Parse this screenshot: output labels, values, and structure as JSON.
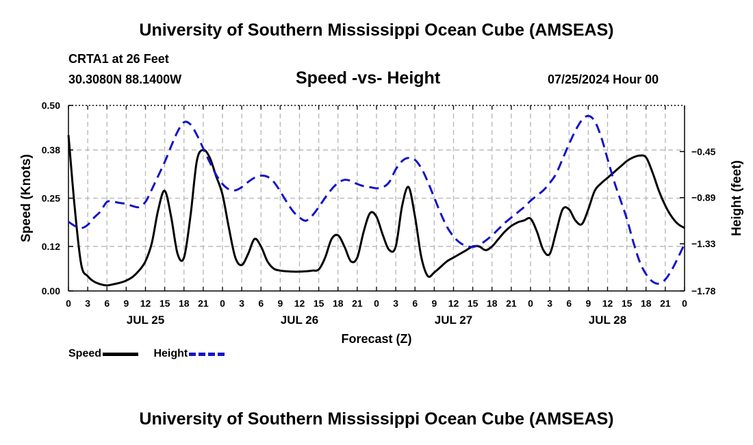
{
  "header": {
    "title": "University of Southern Mississippi Ocean Cube (AMSEAS)",
    "station": "CRTA1 at 26 Feet",
    "coords": "30.3080N  88.1400W",
    "subtitle": "Speed -vs- Height",
    "datetime": "07/25/2024 Hour 00"
  },
  "footer": {
    "title": "University of Southern Mississippi Ocean Cube (AMSEAS)"
  },
  "legend": {
    "speed_label": "Speed",
    "height_label": "Height"
  },
  "chart_data": {
    "type": "line",
    "title": "Speed -vs- Height",
    "xlabel": "Forecast (Z)",
    "ylabel": "Speed (Knots)",
    "y2label": "Height (feet)",
    "x_range": [
      0,
      96
    ],
    "ylim": [
      0,
      0.5
    ],
    "y2lim": [
      -1.78,
      -0.01
    ],
    "grid": true,
    "legend_position": "bottom-left",
    "x_tick_labels": [
      "0",
      "3",
      "6",
      "9",
      "12",
      "15",
      "18",
      "21",
      "0",
      "3",
      "6",
      "9",
      "12",
      "15",
      "18",
      "21",
      "0",
      "3",
      "6",
      "9",
      "12",
      "15",
      "18",
      "21",
      "0",
      "3",
      "6",
      "9",
      "12",
      "15",
      "18",
      "21",
      "0"
    ],
    "x_date_labels": [
      {
        "label": "JUL 25",
        "hour": 12
      },
      {
        "label": "JUL 26",
        "hour": 36
      },
      {
        "label": "JUL 27",
        "hour": 60
      },
      {
        "label": "JUL 28",
        "hour": 84
      }
    ],
    "y_ticks": [
      0.0,
      0.12,
      0.25,
      0.38,
      0.5
    ],
    "y_tick_labels": [
      "0.00",
      "0.12",
      "0.25",
      "0.38",
      "0.50"
    ],
    "y2_ticks": [
      -1.78,
      -1.33,
      -0.89,
      -0.45
    ],
    "y2_tick_labels": [
      "−1.78",
      "−1.33",
      "−0.89",
      "−0.45"
    ],
    "series": [
      {
        "name": "Speed",
        "axis": "left",
        "color": "#000000",
        "dash": "solid",
        "x": [
          0,
          1,
          2,
          3,
          4,
          5,
          6,
          7,
          8,
          9,
          10,
          11,
          12,
          13,
          14,
          15,
          16,
          17,
          18,
          19,
          20,
          21,
          22,
          23,
          24,
          25,
          26,
          27,
          28,
          29,
          30,
          31,
          32,
          33,
          34,
          35,
          36,
          37,
          38,
          39,
          40,
          41,
          42,
          43,
          44,
          45,
          46,
          47,
          48,
          49,
          50,
          51,
          52,
          53,
          54,
          55,
          56,
          57,
          58,
          59,
          60,
          61,
          62,
          63,
          64,
          65,
          66,
          67,
          68,
          69,
          70,
          71,
          72,
          73,
          74,
          75,
          76,
          77,
          78,
          79,
          80,
          81,
          82,
          83,
          84,
          85,
          86,
          87,
          88,
          89,
          90,
          91,
          92,
          93,
          94,
          95,
          96
        ],
        "values": [
          0.42,
          0.22,
          0.07,
          0.04,
          0.025,
          0.018,
          0.015,
          0.018,
          0.022,
          0.028,
          0.038,
          0.055,
          0.08,
          0.13,
          0.22,
          0.27,
          0.2,
          0.1,
          0.09,
          0.2,
          0.35,
          0.38,
          0.36,
          0.31,
          0.26,
          0.17,
          0.09,
          0.07,
          0.1,
          0.14,
          0.12,
          0.08,
          0.06,
          0.055,
          0.053,
          0.052,
          0.052,
          0.053,
          0.055,
          0.058,
          0.09,
          0.14,
          0.15,
          0.12,
          0.08,
          0.09,
          0.16,
          0.21,
          0.2,
          0.15,
          0.11,
          0.12,
          0.23,
          0.28,
          0.2,
          0.09,
          0.04,
          0.05,
          0.065,
          0.08,
          0.09,
          0.1,
          0.11,
          0.12,
          0.12,
          0.11,
          0.12,
          0.14,
          0.16,
          0.175,
          0.185,
          0.19,
          0.195,
          0.16,
          0.11,
          0.1,
          0.16,
          0.22,
          0.22,
          0.19,
          0.18,
          0.22,
          0.27,
          0.29,
          0.305,
          0.32,
          0.335,
          0.35,
          0.36,
          0.365,
          0.36,
          0.32,
          0.27,
          0.23,
          0.2,
          0.18,
          0.17
        ]
      },
      {
        "name": "Height",
        "axis": "right",
        "color": "#1414c8",
        "dash": "dashed",
        "x": [
          0,
          1,
          2,
          3,
          4,
          5,
          6,
          7,
          8,
          9,
          10,
          11,
          12,
          13,
          14,
          15,
          16,
          17,
          18,
          19,
          20,
          21,
          22,
          23,
          24,
          25,
          26,
          27,
          28,
          29,
          30,
          31,
          32,
          33,
          34,
          35,
          36,
          37,
          38,
          39,
          40,
          41,
          42,
          43,
          44,
          45,
          46,
          47,
          48,
          49,
          50,
          51,
          52,
          53,
          54,
          55,
          56,
          57,
          58,
          59,
          60,
          61,
          62,
          63,
          64,
          65,
          66,
          67,
          68,
          69,
          70,
          71,
          72,
          73,
          74,
          75,
          76,
          77,
          78,
          79,
          80,
          81,
          82,
          83,
          84,
          85,
          86,
          87,
          88,
          89,
          90,
          91,
          92,
          93,
          94,
          95,
          96
        ],
        "values": [
          -1.12,
          -1.16,
          -1.18,
          -1.15,
          -1.08,
          -1.02,
          -0.93,
          -0.93,
          -0.94,
          -0.95,
          -0.97,
          -0.98,
          -0.93,
          -0.81,
          -0.68,
          -0.55,
          -0.4,
          -0.26,
          -0.17,
          -0.19,
          -0.29,
          -0.42,
          -0.55,
          -0.67,
          -0.76,
          -0.81,
          -0.82,
          -0.79,
          -0.74,
          -0.7,
          -0.68,
          -0.69,
          -0.74,
          -0.83,
          -0.93,
          -1.02,
          -1.08,
          -1.11,
          -1.06,
          -0.98,
          -0.89,
          -0.81,
          -0.75,
          -0.72,
          -0.73,
          -0.76,
          -0.78,
          -0.79,
          -0.8,
          -0.79,
          -0.74,
          -0.62,
          -0.54,
          -0.51,
          -0.53,
          -0.61,
          -0.74,
          -0.89,
          -1.04,
          -1.17,
          -1.26,
          -1.32,
          -1.35,
          -1.36,
          -1.34,
          -1.3,
          -1.25,
          -1.19,
          -1.13,
          -1.08,
          -1.03,
          -0.98,
          -0.92,
          -0.87,
          -0.82,
          -0.75,
          -0.66,
          -0.52,
          -0.38,
          -0.25,
          -0.15,
          -0.11,
          -0.16,
          -0.31,
          -0.52,
          -0.73,
          -0.91,
          -1.09,
          -1.31,
          -1.5,
          -1.62,
          -1.69,
          -1.71,
          -1.67,
          -1.58,
          -1.46,
          -1.33
        ]
      }
    ]
  }
}
